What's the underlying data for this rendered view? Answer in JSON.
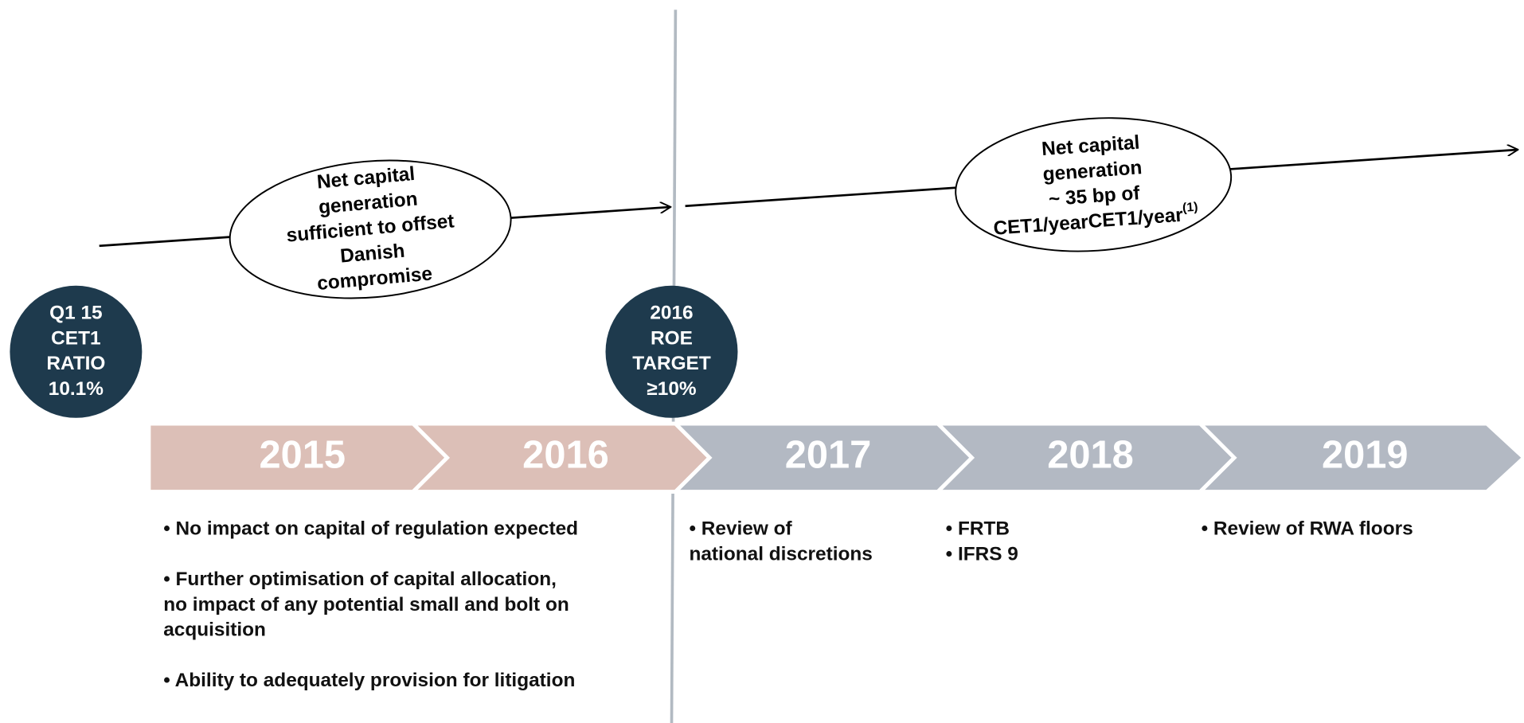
{
  "circles": [
    {
      "lines": [
        "Q1 15",
        "CET1",
        "RATIO",
        "10.1%"
      ]
    },
    {
      "lines": [
        "2016",
        "ROE",
        "TARGET",
        "≥10%"
      ]
    }
  ],
  "ellipses": [
    {
      "lines": [
        "Net capital",
        "generation",
        "sufficient to offset",
        "Danish",
        "compromise"
      ]
    },
    {
      "lines": [
        "Net capital",
        "generation",
        "~ 35 bp of",
        "CET1/year"
      ],
      "superscript": "(1)"
    }
  ],
  "years": [
    "2015",
    "2016",
    "2017",
    "2018",
    "2019"
  ],
  "notes": [
    {
      "paragraphs": [
        [
          "• No impact on capital of regulation expected"
        ],
        [
          "• Further optimisation of capital allocation,",
          "no impact of any potential small and bolt on",
          "acquisition"
        ],
        [
          "• Ability to adequately provision for litigation"
        ]
      ]
    },
    {
      "paragraphs": [
        [
          "• Review of",
          "national discretions"
        ]
      ]
    },
    {
      "paragraphs": [
        [
          "• FRTB",
          "• IFRS 9"
        ]
      ]
    },
    {
      "paragraphs": [
        [
          "• Review of RWA floors"
        ]
      ]
    }
  ]
}
